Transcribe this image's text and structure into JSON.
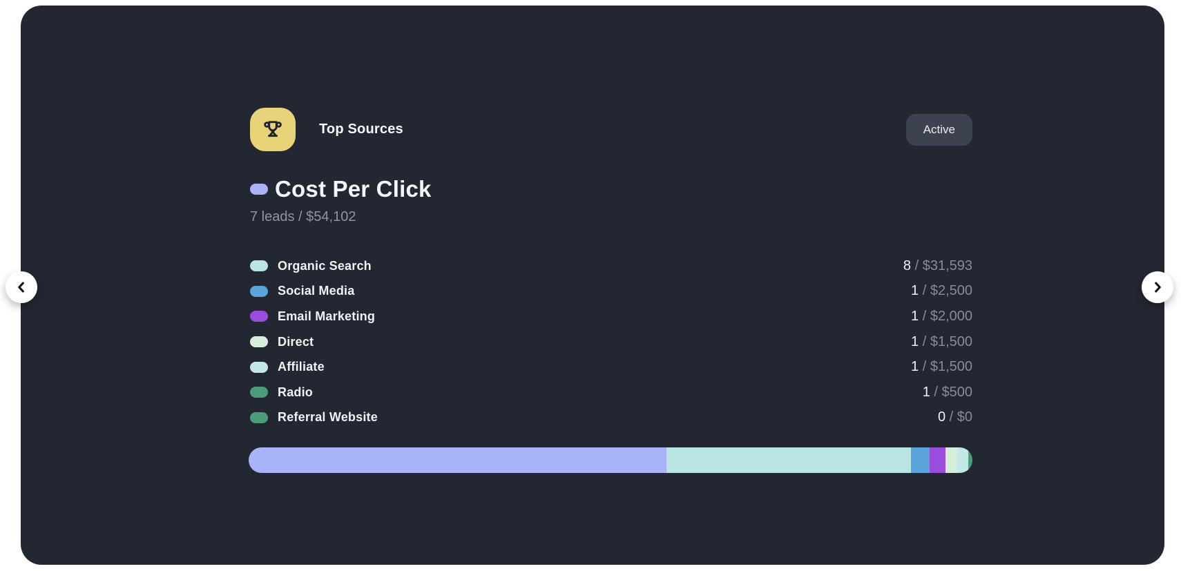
{
  "card": {
    "header": {
      "title": "Top Sources",
      "badge_label": "Active",
      "icon": "trophy-icon",
      "tile_color": "#e7d378",
      "badge_bg": "#3d4250"
    },
    "metric": {
      "name": "Cost Per Click",
      "summary": "7 leads / $54,102",
      "leads": 7,
      "amount": "$54,102",
      "value": 54102,
      "color": "#a9b3f8"
    },
    "sources": [
      {
        "label": "Organic Search",
        "count": "8",
        "amount": "$31,593",
        "value": 31593,
        "color": "#b9e5e2"
      },
      {
        "label": "Social Media",
        "count": "1",
        "amount": "$2,500",
        "value": 2500,
        "color": "#5ba4d9"
      },
      {
        "label": "Email Marketing",
        "count": "1",
        "amount": "$2,000",
        "value": 2000,
        "color": "#9a4ddd"
      },
      {
        "label": "Direct",
        "count": "1",
        "amount": "$1,500",
        "value": 1500,
        "color": "#d7efda"
      },
      {
        "label": "Affiliate",
        "count": "1",
        "amount": "$1,500",
        "value": 1500,
        "color": "#c3e8e6"
      },
      {
        "label": "Radio",
        "count": "1",
        "amount": "$500",
        "value": 500,
        "color": "#4d9c78"
      },
      {
        "label": "Referral Website",
        "count": "0",
        "amount": "$0",
        "value": 0,
        "color": "#4d9c78"
      }
    ],
    "value_separator": " / "
  },
  "chart_data": {
    "type": "bar",
    "title": "Cost Per Click",
    "subtitle": "7 leads / $54,102",
    "note": "single horizontal stacked bar; segment widths proportional to dollar amounts",
    "categories": [
      "Cost Per Click",
      "Organic Search",
      "Social Media",
      "Email Marketing",
      "Direct",
      "Affiliate",
      "Radio",
      "Referral Website"
    ],
    "values": [
      54102,
      31593,
      2500,
      2000,
      1500,
      1500,
      500,
      0
    ],
    "colors": [
      "#a9b3f8",
      "#b9e5e2",
      "#5ba4d9",
      "#9a4ddd",
      "#d7efda",
      "#c3e8e6",
      "#4d9c78",
      "#4d9c78"
    ]
  },
  "colors": {
    "card_bg": "#232732",
    "page_bg": "#ffffff",
    "text_primary": "#f4f5f8",
    "text_muted": "#8f95a1",
    "value_muted": "#868d99"
  }
}
